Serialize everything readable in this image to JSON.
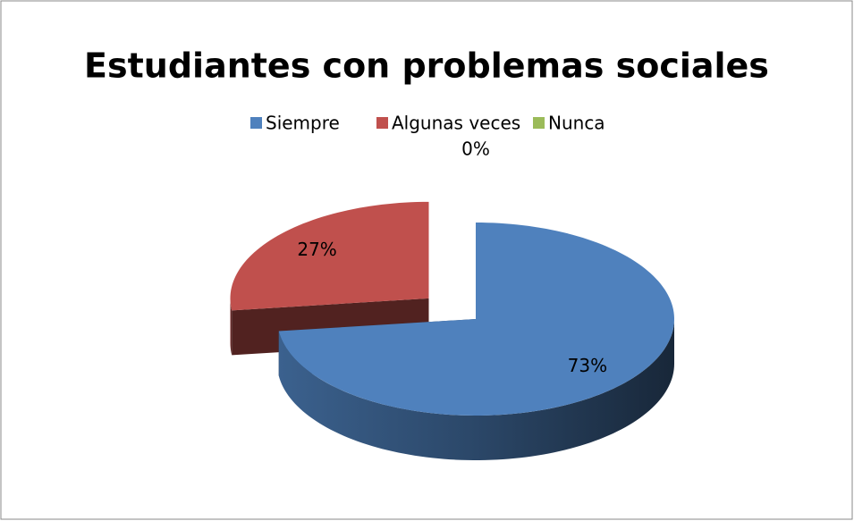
{
  "chart_data": {
    "type": "pie",
    "title": "Estudiantes con problemas sociales",
    "categories": [
      "Siempre",
      "Algunas veces",
      "Nunca"
    ],
    "values": [
      73,
      27,
      0
    ],
    "value_labels": [
      "73%",
      "27%",
      "0%"
    ],
    "colors": [
      "#4f81bd",
      "#c0504d",
      "#9bbb59"
    ],
    "legend": "top"
  }
}
